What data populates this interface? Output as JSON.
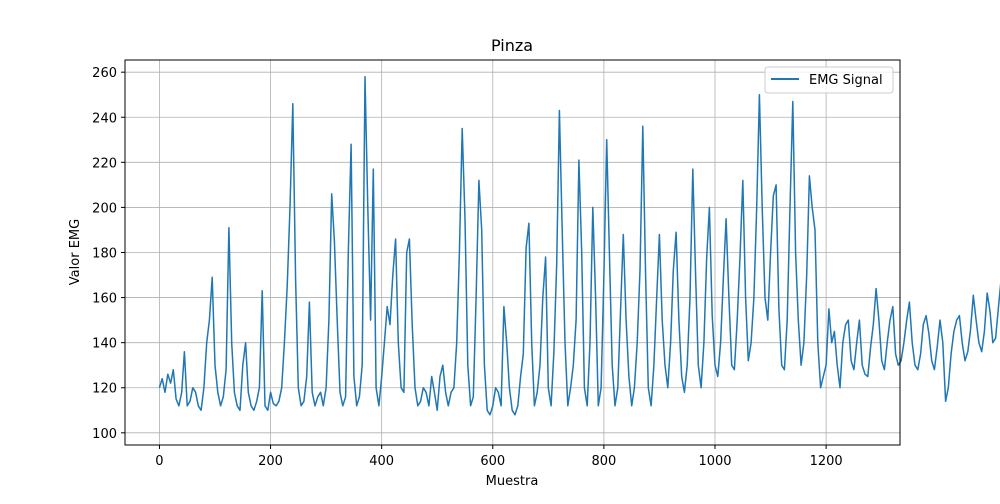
{
  "chart_data": {
    "type": "line",
    "title": "Pinza",
    "xlabel": "Muestra",
    "ylabel": "Valor EMG",
    "xlim": [
      -62,
      1333
    ],
    "ylim": [
      94.6,
      265.4
    ],
    "x_ticks": [
      0,
      200,
      400,
      600,
      800,
      1000,
      1200
    ],
    "y_ticks": [
      100,
      120,
      140,
      160,
      180,
      200,
      220,
      240,
      260
    ],
    "grid": true,
    "legend_placement": "top-right",
    "series": [
      {
        "name": "EMG Signal",
        "color": "#1f77b4",
        "x_start": 0,
        "x_step": 5,
        "values": [
          120,
          124,
          118,
          126,
          122,
          128,
          115,
          112,
          118,
          136,
          112,
          114,
          120,
          118,
          112,
          110,
          120,
          140,
          150,
          169,
          130,
          118,
          112,
          116,
          128,
          191,
          140,
          118,
          112,
          110,
          130,
          140,
          118,
          112,
          110,
          114,
          120,
          163,
          112,
          110,
          118,
          113,
          112,
          114,
          120,
          140,
          165,
          200,
          246,
          168,
          120,
          112,
          114,
          125,
          158,
          118,
          112,
          116,
          118,
          112,
          120,
          150,
          206,
          185,
          150,
          118,
          112,
          116,
          180,
          228,
          125,
          112,
          116,
          130,
          258,
          200,
          150,
          217,
          120,
          112,
          125,
          140,
          156,
          148,
          170,
          186,
          140,
          120,
          118,
          180,
          186,
          148,
          120,
          112,
          114,
          120,
          118,
          112,
          125,
          118,
          110,
          125,
          130,
          118,
          112,
          118,
          120,
          140,
          180,
          235,
          195,
          130,
          112,
          116,
          160,
          212,
          190,
          130,
          110,
          108,
          112,
          120,
          118,
          112,
          156,
          140,
          120,
          110,
          108,
          112,
          125,
          135,
          182,
          193,
          140,
          112,
          118,
          130,
          160,
          178,
          120,
          112,
          136,
          175,
          243,
          190,
          140,
          112,
          120,
          130,
          150,
          221,
          180,
          120,
          112,
          140,
          200,
          160,
          112,
          120,
          170,
          230,
          180,
          130,
          112,
          120,
          155,
          188,
          150,
          125,
          112,
          120,
          140,
          172,
          236,
          170,
          120,
          112,
          130,
          160,
          188,
          150,
          130,
          120,
          140,
          172,
          189,
          150,
          125,
          118,
          130,
          160,
          217,
          170,
          130,
          120,
          140,
          178,
          200,
          152,
          130,
          125,
          140,
          168,
          195,
          160,
          130,
          128,
          150,
          178,
          212,
          160,
          132,
          140,
          160,
          200,
          250,
          200,
          160,
          150,
          180,
          205,
          210,
          155,
          130,
          128,
          150,
          200,
          247,
          180,
          150,
          130,
          140,
          170,
          214,
          200,
          190,
          140,
          120,
          125,
          130,
          155,
          140,
          145,
          130,
          120,
          140,
          148,
          150,
          132,
          128,
          140,
          150,
          130,
          126,
          125,
          138,
          148,
          164,
          150,
          132,
          128,
          140,
          150,
          156,
          135,
          130,
          132,
          140,
          150,
          158,
          140,
          130,
          128,
          135,
          148,
          152,
          144,
          132,
          128,
          138,
          150,
          140,
          114,
          120,
          135,
          145,
          150,
          152,
          140,
          132,
          136,
          146,
          161,
          150,
          140,
          136,
          145,
          162,
          154,
          140,
          142,
          155,
          168,
          152,
          140,
          138,
          150,
          165,
          169,
          150,
          140,
          138,
          150,
          160,
          145,
          135,
          130,
          140,
          155,
          158,
          150,
          140,
          135,
          130,
          125,
          120,
          128,
          135,
          140,
          128,
          120,
          118,
          126,
          132,
          128,
          122,
          120,
          125,
          130,
          135,
          128,
          132,
          140,
          146,
          150,
          140,
          136,
          132,
          138,
          150,
          160,
          145,
          138,
          134,
          140,
          148,
          162,
          150,
          140,
          132,
          138,
          146,
          150,
          144,
          136,
          140,
          150,
          145,
          130,
          148
        ]
      }
    ]
  }
}
